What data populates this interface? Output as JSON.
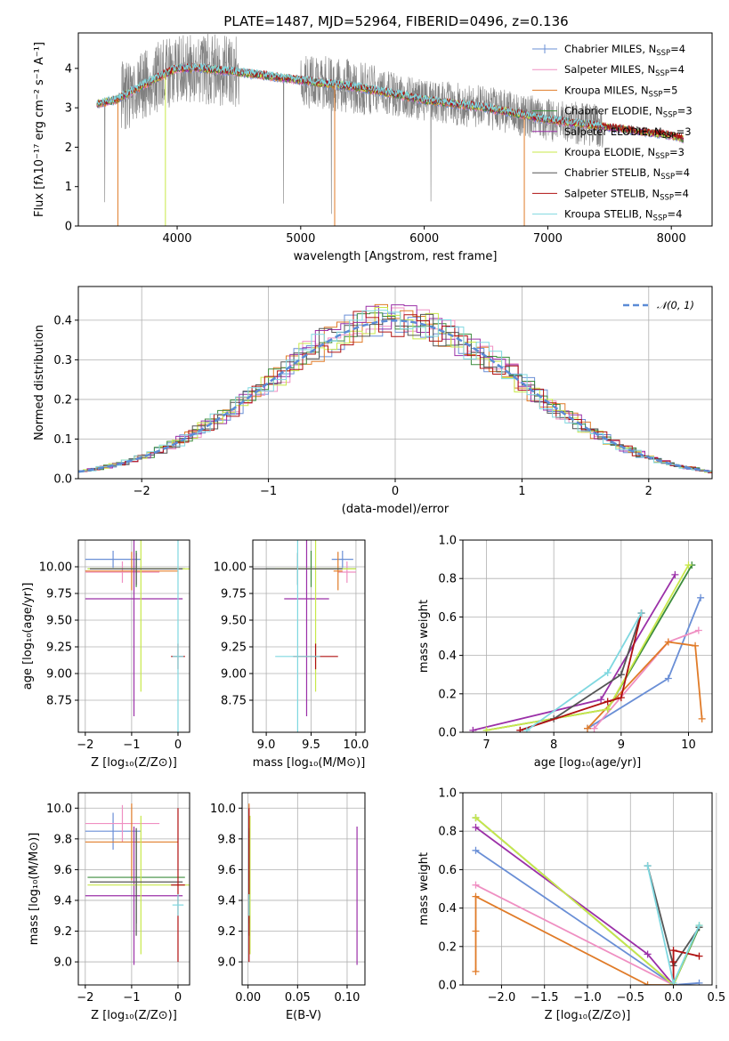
{
  "title": "PLATE=1487, MJD=52964, FIBERID=0496, z=0.136",
  "colors": {
    "Chabrier MILES": "#6a8fd6",
    "Salpeter MILES": "#ef8fc2",
    "Kroupa MILES": "#e07b28",
    "Chabrier ELODIE": "#3c8c3c",
    "Salpeter ELODIE": "#9b30a8",
    "Kroupa ELODIE": "#c8e84a",
    "Chabrier STELIB": "#555555",
    "Salpeter STELIB": "#b01010",
    "Kroupa STELIB": "#7fd8e0",
    "data": "#808080"
  },
  "chart_data": [
    {
      "id": "spectrum",
      "type": "line",
      "xlabel": "wavelength [Angstrom, rest frame]",
      "ylabel": "Flux [fλ10⁻¹⁷ erg cm⁻² s⁻¹ A⁻¹]",
      "xlim": [
        3200,
        8330
      ],
      "ylim": [
        0,
        4.9
      ],
      "xticks": [
        "4000",
        "5000",
        "6000",
        "7000",
        "8000"
      ],
      "yticks": [
        "0",
        "1",
        "2",
        "3",
        "4"
      ],
      "legend_position": "upper-right",
      "legend": [
        {
          "label": "Chabrier MILES, N",
          "sub": "SSP",
          "tail": "=4"
        },
        {
          "label": "Salpeter MILES, N",
          "sub": "SSP",
          "tail": "=4"
        },
        {
          "label": "Kroupa MILES, N",
          "sub": "SSP",
          "tail": "=5"
        },
        {
          "label": "Chabrier ELODIE, N",
          "sub": "SSP",
          "tail": "=3"
        },
        {
          "label": "Salpeter ELODIE, N",
          "sub": "SSP",
          "tail": "=3"
        },
        {
          "label": "Kroupa ELODIE, N",
          "sub": "SSP",
          "tail": "=3"
        },
        {
          "label": "Chabrier STELIB, N",
          "sub": "SSP",
          "tail": "=4"
        },
        {
          "label": "Salpeter STELIB, N",
          "sub": "SSP",
          "tail": "=4"
        },
        {
          "label": "Kroupa STELIB, N",
          "sub": "SSP",
          "tail": "=4"
        }
      ],
      "data_range": [
        3350,
        7450
      ],
      "model_range": [
        3350,
        8100
      ],
      "continuum_wavelength": [
        3350,
        3500,
        3800,
        4000,
        4200,
        4500,
        5000,
        5500,
        6000,
        6500,
        7000,
        7500,
        8000,
        8100
      ],
      "continuum_flux": [
        3.1,
        3.2,
        3.7,
        4.0,
        4.0,
        3.9,
        3.7,
        3.5,
        3.2,
        3.0,
        2.7,
        2.5,
        2.3,
        2.2
      ]
    },
    {
      "id": "residuals",
      "type": "bar",
      "xlabel": "(data-model)/error",
      "ylabel": "Normed distribution",
      "xlim": [
        -2.5,
        2.5
      ],
      "ylim": [
        0,
        0.485
      ],
      "xticks": [
        "−2",
        "−1",
        "0",
        "1",
        "2"
      ],
      "yticks": [
        "0.0",
        "0.1",
        "0.2",
        "0.3",
        "0.4"
      ],
      "grid": true,
      "legend_position": "upper-right",
      "legend": "𝒩(0, 1)",
      "bin_width": 0.1
    },
    {
      "id": "age-vs-Z",
      "type": "scatter",
      "xlabel": "Z [log₁₀(Z/Z⊙)]",
      "ylabel": "age  [log₁₀(age/yr)]",
      "xlim": [
        -2.15,
        0.25
      ],
      "ylim": [
        8.45,
        10.25
      ],
      "xticks": [
        "−2",
        "−1",
        "0"
      ],
      "yticks": [
        "8.75",
        "9.00",
        "9.25",
        "9.50",
        "9.75",
        "10.00"
      ],
      "grid": true,
      "points": [
        {
          "model": "Chabrier MILES",
          "x": -1.4,
          "xerr": 0.6,
          "y": 10.07,
          "yerr": 0.08
        },
        {
          "model": "Salpeter MILES",
          "x": -1.2,
          "xerr": 0.8,
          "y": 9.95,
          "yerr": 0.1
        },
        {
          "model": "Kroupa MILES",
          "x": -1.0,
          "xerr": 1.0,
          "y": 9.96,
          "yerr": 0.18
        },
        {
          "model": "Chabrier ELODIE",
          "x": -0.9,
          "xerr": 1.05,
          "y": 9.98,
          "yerr": 0.17
        },
        {
          "model": "Salpeter ELODIE",
          "x": -0.95,
          "xerr": 1.05,
          "y": 9.7,
          "yerr": 1.1
        },
        {
          "model": "Kroupa ELODIE",
          "x": -0.8,
          "xerr": 1.15,
          "y": 9.98,
          "yerr": 1.15
        },
        {
          "model": "Chabrier STELIB",
          "x": -0.9,
          "xerr": 1.0,
          "y": 9.98,
          "yerr": 0.15
        },
        {
          "model": "Salpeter STELIB",
          "x": 0.0,
          "xerr": 0.15,
          "y": 9.16,
          "yerr": 0.12
        },
        {
          "model": "Kroupa STELIB",
          "x": 0.0,
          "xerr": 0.12,
          "y": 9.16,
          "yerr": 1.15
        }
      ]
    },
    {
      "id": "age-vs-mass",
      "type": "scatter",
      "xlabel": "mass [log₁₀(M/M⊙)]",
      "ylabel": "",
      "xlim": [
        8.85,
        10.1
      ],
      "ylim": [
        8.45,
        10.25
      ],
      "xticks": [
        "9.0",
        "9.5",
        "10.0"
      ],
      "yticks": [
        "8.75",
        "9.00",
        "9.25",
        "9.50",
        "9.75",
        "10.00"
      ],
      "grid": true,
      "points": [
        {
          "model": "Chabrier MILES",
          "x": 9.85,
          "xerr": 0.12,
          "y": 10.07,
          "yerr": 0.08
        },
        {
          "model": "Salpeter MILES",
          "x": 9.9,
          "xerr": 0.1,
          "y": 9.95,
          "yerr": 0.1
        },
        {
          "model": "Kroupa MILES",
          "x": 9.8,
          "xerr": 0.05,
          "y": 9.96,
          "yerr": 0.18
        },
        {
          "model": "Chabrier ELODIE",
          "x": 9.5,
          "xerr": 0.5,
          "y": 9.98,
          "yerr": 0.17
        },
        {
          "model": "Salpeter ELODIE",
          "x": 9.45,
          "xerr": 0.25,
          "y": 9.7,
          "yerr": 1.1
        },
        {
          "model": "Kroupa ELODIE",
          "x": 9.55,
          "xerr": 0.45,
          "y": 9.98,
          "yerr": 1.15
        },
        {
          "model": "Chabrier STELIB",
          "x": 9.35,
          "xerr": 0.5,
          "y": 9.98,
          "yerr": 0.15
        },
        {
          "model": "Salpeter STELIB",
          "x": 9.55,
          "xerr": 0.25,
          "y": 9.16,
          "yerr": 0.12
        },
        {
          "model": "Kroupa STELIB",
          "x": 9.35,
          "xerr": 0.25,
          "y": 9.16,
          "yerr": 1.15
        }
      ]
    },
    {
      "id": "weight-vs-age",
      "type": "line",
      "xlabel": "age  [log₁₀(age/yr)]",
      "ylabel": "mass weight",
      "xlim": [
        6.65,
        10.35
      ],
      "ylim": [
        0,
        1.0
      ],
      "xticks": [
        "7",
        "8",
        "9",
        "10"
      ],
      "yticks": [
        "0.0",
        "0.2",
        "0.4",
        "0.6",
        "0.8",
        "1.0"
      ],
      "grid": true,
      "series": [
        {
          "model": "Chabrier MILES",
          "x": [
            8.5,
            9.7,
            10.18
          ],
          "y": [
            0.02,
            0.28,
            0.7
          ]
        },
        {
          "model": "Salpeter MILES",
          "x": [
            8.6,
            9.7,
            10.15
          ],
          "y": [
            0.02,
            0.47,
            0.53
          ]
        },
        {
          "model": "Kroupa MILES",
          "x": [
            8.5,
            9.7,
            10.1,
            10.2
          ],
          "y": [
            0.02,
            0.47,
            0.45,
            0.07
          ]
        },
        {
          "model": "Chabrier ELODIE",
          "x": [
            7.0,
            8.8,
            10.05
          ],
          "y": [
            0.01,
            0.12,
            0.87
          ]
        },
        {
          "model": "Salpeter ELODIE",
          "x": [
            6.8,
            8.7,
            9.8
          ],
          "y": [
            0.01,
            0.17,
            0.82
          ]
        },
        {
          "model": "Kroupa ELODIE",
          "x": [
            7.0,
            8.8,
            10.0
          ],
          "y": [
            0.01,
            0.12,
            0.87
          ]
        },
        {
          "model": "Chabrier STELIB",
          "x": [
            7.5,
            8.0,
            9.0,
            9.3
          ],
          "y": [
            0.01,
            0.07,
            0.3,
            0.62
          ]
        },
        {
          "model": "Salpeter STELIB",
          "x": [
            7.5,
            8.8,
            9.0,
            9.3
          ],
          "y": [
            0.01,
            0.16,
            0.18,
            0.62
          ]
        },
        {
          "model": "Kroupa STELIB",
          "x": [
            7.6,
            8.8,
            9.3
          ],
          "y": [
            0.01,
            0.31,
            0.62
          ]
        }
      ]
    },
    {
      "id": "mass-vs-Z",
      "type": "scatter",
      "xlabel": "Z [log₁₀(Z/Z⊙)]",
      "ylabel": "mass [log₁₀(M/M⊙)]",
      "xlim": [
        -2.15,
        0.25
      ],
      "ylim": [
        8.85,
        10.1
      ],
      "xticks": [
        "−2",
        "−1",
        "0"
      ],
      "yticks": [
        "9.0",
        "9.2",
        "9.4",
        "9.6",
        "9.8",
        "10.0"
      ],
      "grid": true,
      "points": [
        {
          "model": "Chabrier MILES",
          "x": -1.4,
          "xerr": 0.6,
          "y": 9.85,
          "yerr": 0.12
        },
        {
          "model": "Salpeter MILES",
          "x": -1.2,
          "xerr": 0.8,
          "y": 9.9,
          "yerr": 0.12
        },
        {
          "model": "Kroupa MILES",
          "x": -1.0,
          "xerr": 1.0,
          "y": 9.78,
          "yerr": 0.25
        },
        {
          "model": "Chabrier ELODIE",
          "x": -0.9,
          "xerr": 1.05,
          "y": 9.55,
          "yerr": 0.3
        },
        {
          "model": "Salpeter ELODIE",
          "x": -0.95,
          "xerr": 1.05,
          "y": 9.43,
          "yerr": 0.45
        },
        {
          "model": "Kroupa ELODIE",
          "x": -0.8,
          "xerr": 1.15,
          "y": 9.5,
          "yerr": 0.45
        },
        {
          "model": "Chabrier STELIB",
          "x": -0.9,
          "xerr": 1.0,
          "y": 9.52,
          "yerr": 0.35
        },
        {
          "model": "Salpeter STELIB",
          "x": 0.0,
          "xerr": 0.15,
          "y": 9.5,
          "yerr": 0.5
        },
        {
          "model": "Kroupa STELIB",
          "x": 0.0,
          "xerr": 0.12,
          "y": 9.37,
          "yerr": 0.07
        }
      ]
    },
    {
      "id": "mass-vs-EBV",
      "type": "scatter",
      "xlabel": "E(B-V)",
      "ylabel": "",
      "xlim": [
        -0.006,
        0.118
      ],
      "ylim": [
        8.85,
        10.1
      ],
      "xticks": [
        "0.00",
        "0.05",
        "0.10"
      ],
      "yticks": [
        "9.0",
        "9.2",
        "9.4",
        "9.6",
        "9.8",
        "10.0"
      ],
      "grid": true,
      "points": [
        {
          "model": "Chabrier MILES",
          "x": 0.001,
          "y": 9.85,
          "yerr": 0.12
        },
        {
          "model": "Salpeter MILES",
          "x": 0.001,
          "y": 9.9,
          "yerr": 0.12
        },
        {
          "model": "Kroupa MILES",
          "x": 0.001,
          "y": 9.78,
          "yerr": 0.25
        },
        {
          "model": "Chabrier ELODIE",
          "x": 0.001,
          "y": 9.55,
          "yerr": 0.3
        },
        {
          "model": "Salpeter ELODIE",
          "x": 0.11,
          "y": 9.43,
          "yerr": 0.45
        },
        {
          "model": "Kroupa ELODIE",
          "x": 0.002,
          "y": 9.5,
          "yerr": 0.45
        },
        {
          "model": "Chabrier STELIB",
          "x": 0.001,
          "y": 9.52,
          "yerr": 0.35
        },
        {
          "model": "Salpeter STELIB",
          "x": 0.001,
          "y": 9.5,
          "yerr": 0.5
        },
        {
          "model": "Kroupa STELIB",
          "x": 0.001,
          "y": 9.37,
          "yerr": 0.07
        }
      ]
    },
    {
      "id": "weight-vs-Z",
      "type": "line",
      "xlabel": "Z [log₁₀(Z/Z⊙)]",
      "ylabel": "mass weight",
      "xlim": [
        -2.45,
        0.45
      ],
      "ylim": [
        0,
        1.0
      ],
      "xticks": [
        "−2.0",
        "−1.5",
        "−1.0",
        "−0.5",
        "0.0",
        "0.5"
      ],
      "yticks": [
        "0.0",
        "0.2",
        "0.4",
        "0.6",
        "0.8",
        "1.0"
      ],
      "grid": true,
      "series": [
        {
          "model": "Chabrier MILES",
          "x": [
            -2.3,
            0.0,
            0.3
          ],
          "y": [
            0.7,
            0.0,
            0.01
          ]
        },
        {
          "model": "Salpeter MILES",
          "x": [
            -2.3,
            0.0
          ],
          "y": [
            0.52,
            0.0
          ]
        },
        {
          "model": "Kroupa MILES",
          "x": [
            -2.3,
            -2.3,
            -2.3,
            -0.3,
            0.0
          ],
          "y": [
            0.07,
            0.28,
            0.46,
            0.0,
            0.0
          ]
        },
        {
          "model": "Chabrier ELODIE",
          "x": [
            -2.3,
            0.0,
            0.3
          ],
          "y": [
            0.87,
            0.0,
            0.3
          ]
        },
        {
          "model": "Salpeter ELODIE",
          "x": [
            -2.3,
            -0.3,
            0.0
          ],
          "y": [
            0.82,
            0.16,
            0.0
          ]
        },
        {
          "model": "Kroupa ELODIE",
          "x": [
            -2.3,
            0.0,
            0.3
          ],
          "y": [
            0.87,
            0.0,
            0.31
          ]
        },
        {
          "model": "Chabrier STELIB",
          "x": [
            -0.3,
            0.0,
            0.3
          ],
          "y": [
            0.62,
            0.1,
            0.3
          ]
        },
        {
          "model": "Salpeter STELIB",
          "x": [
            0.0,
            0.0,
            0.0,
            0.3
          ],
          "y": [
            0.0,
            0.12,
            0.18,
            0.15
          ]
        },
        {
          "model": "Kroupa STELIB",
          "x": [
            -0.3,
            0.0,
            0.3
          ],
          "y": [
            0.62,
            0.01,
            0.31
          ]
        }
      ]
    }
  ]
}
